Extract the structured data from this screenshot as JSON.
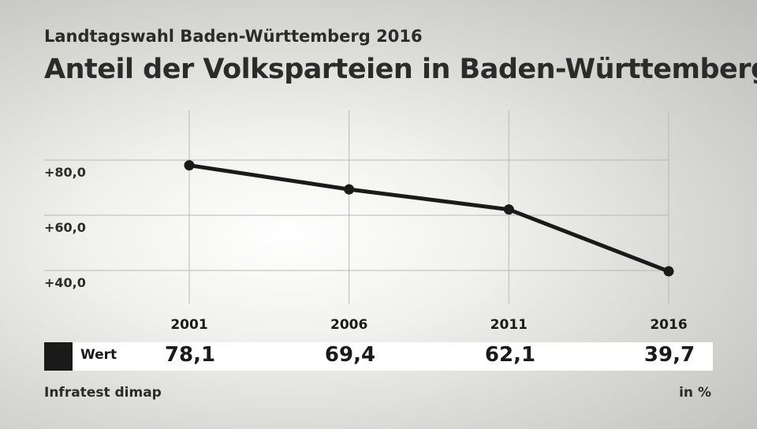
{
  "header": {
    "kicker": "Landtagswahl Baden-Württemberg 2016",
    "title": "Anteil der Volksparteien in Baden-Württemberg"
  },
  "chart_data": {
    "type": "line",
    "categories": [
      "2001",
      "2006",
      "2011",
      "2016"
    ],
    "series": [
      {
        "name": "Wert",
        "values": [
          78.1,
          69.4,
          62.1,
          39.7
        ],
        "labels": [
          "78,1",
          "69,4",
          "62,1",
          "39,7"
        ],
        "color": "#1a1a1a"
      }
    ],
    "yticks": [
      40,
      60,
      80
    ],
    "ytick_labels": [
      "+40,0",
      "+60,0",
      "+80,0"
    ],
    "ylim": [
      28,
      98
    ],
    "grid": true,
    "unit": "in %"
  },
  "footer": {
    "source": "Infratest dimap",
    "unit": "in %"
  },
  "colors": {
    "line": "#1a1a1a",
    "grid": "#b8b8b4",
    "legend_band": "#ffffff"
  }
}
